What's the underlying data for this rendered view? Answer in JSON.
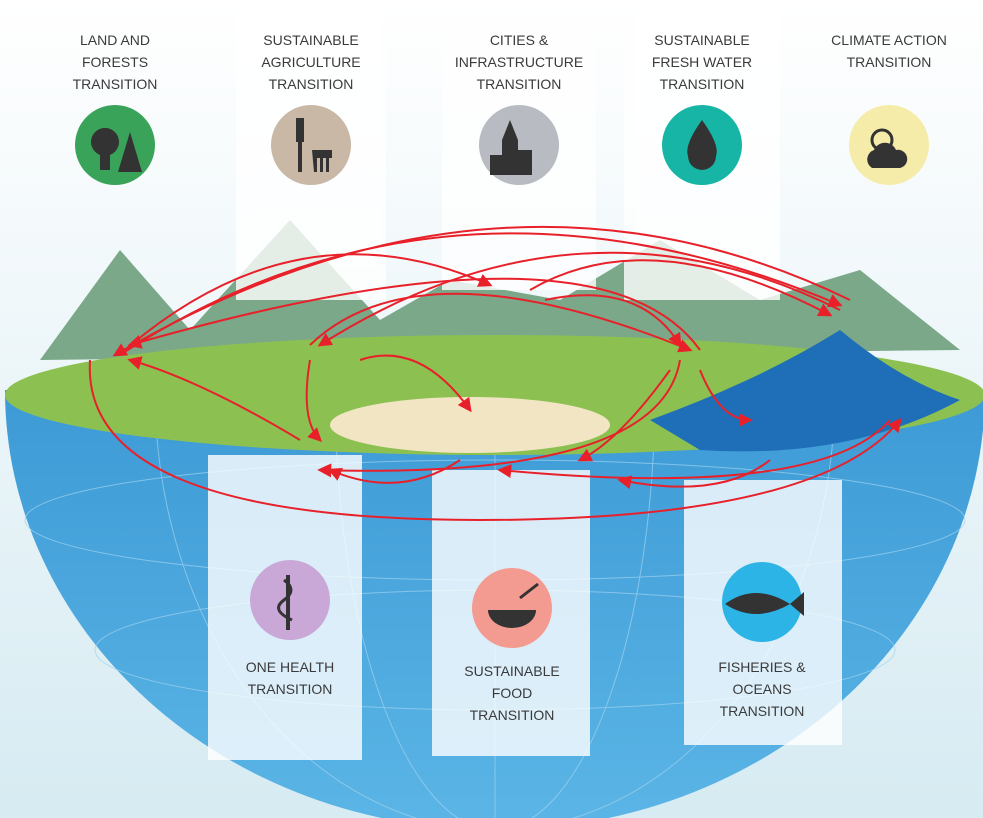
{
  "transitions": [
    {
      "lines": [
        "LAND AND",
        "FORESTS",
        "TRANSITION"
      ]
    },
    {
      "lines": [
        "SUSTAINABLE",
        "AGRICULTURE",
        "TRANSITION"
      ]
    },
    {
      "lines": [
        "CITIES &",
        "INFRASTRUCTURE",
        "TRANSITION"
      ]
    },
    {
      "lines": [
        "SUSTAINABLE",
        "FRESH WATER",
        "TRANSITION"
      ]
    },
    {
      "lines": [
        "CLIMATE ACTION",
        "TRANSITION"
      ]
    },
    {
      "lines": [
        "ONE HEALTH",
        "TRANSITION"
      ]
    },
    {
      "lines": [
        "SUSTAINABLE",
        "FOOD",
        "TRANSITION"
      ]
    },
    {
      "lines": [
        "FISHERIES &",
        "OCEANS",
        "TRANSITION"
      ]
    }
  ]
}
